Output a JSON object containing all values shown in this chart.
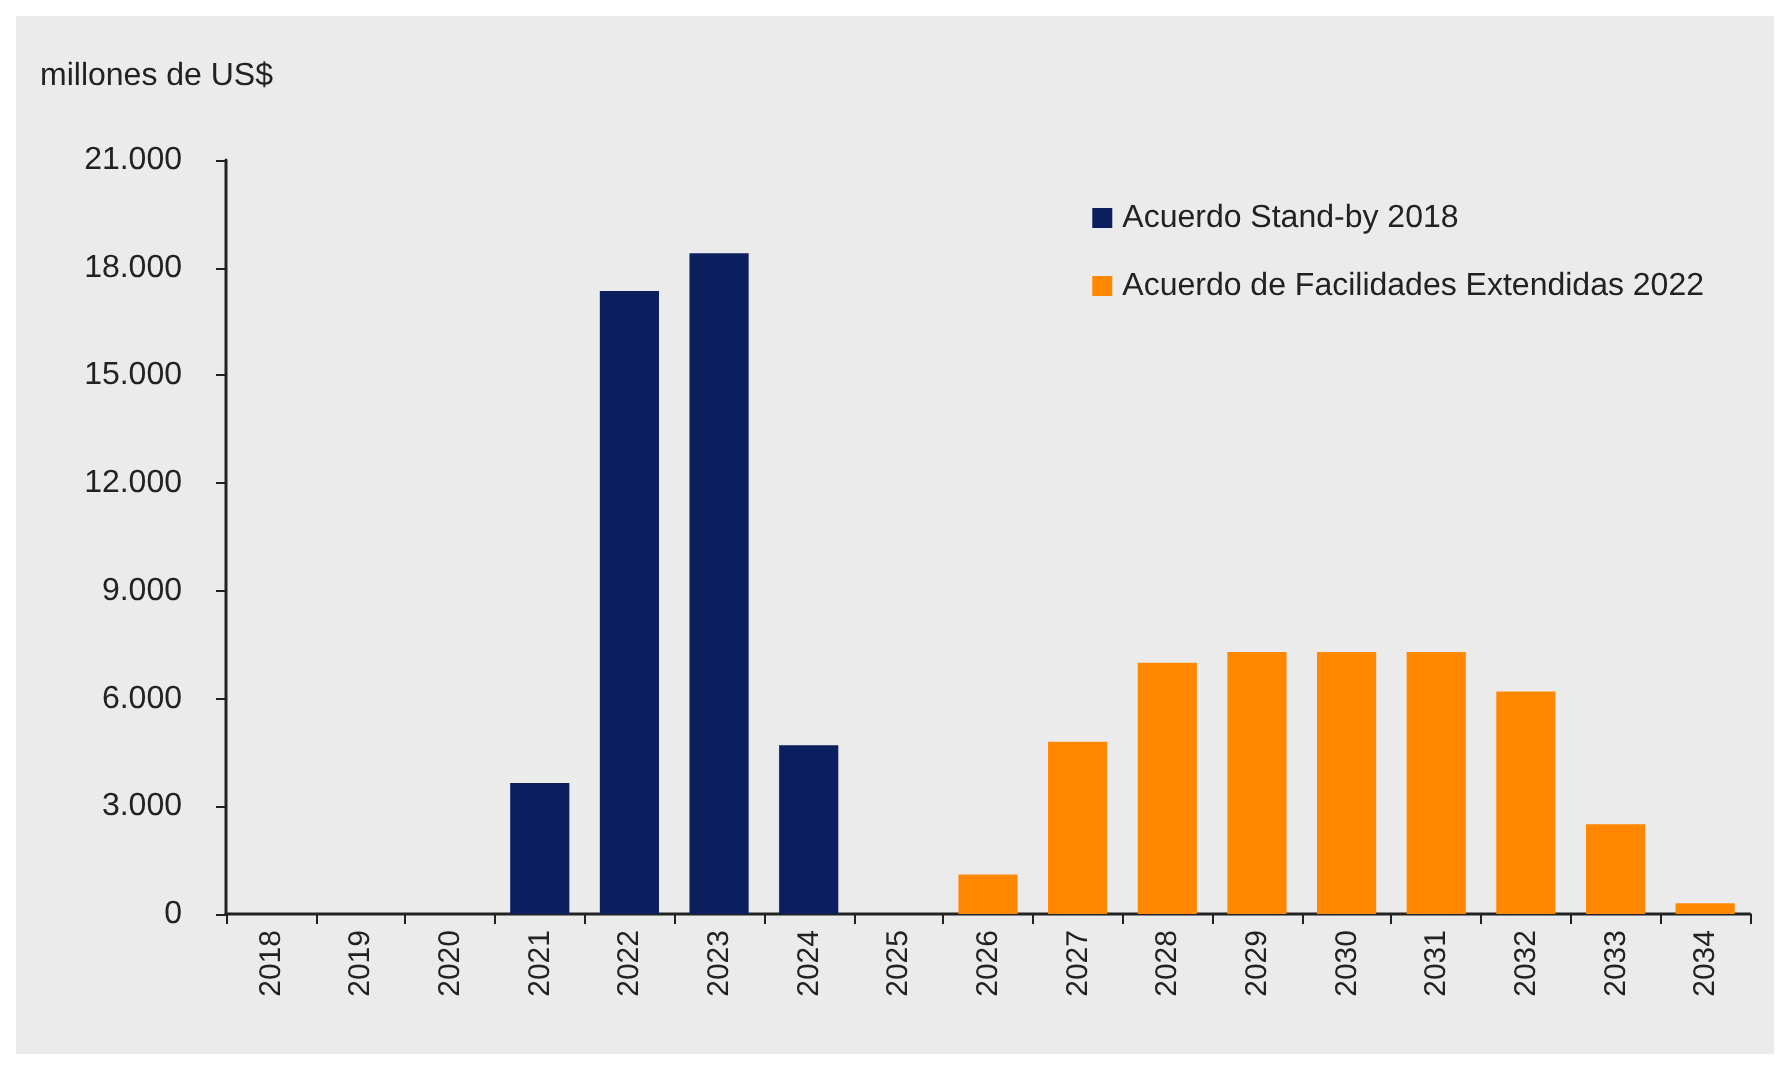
{
  "chart_data": {
    "type": "bar",
    "ylabel": "millones de US$",
    "categories": [
      "2018",
      "2019",
      "2020",
      "2021",
      "2022",
      "2023",
      "2024",
      "2025",
      "2026",
      "2027",
      "2028",
      "2029",
      "2030",
      "2031",
      "2032",
      "2033",
      "2034"
    ],
    "series": [
      {
        "name": "Acuerdo Stand-by 2018",
        "color": "#0b1f5e",
        "values": [
          null,
          null,
          null,
          3650,
          17350,
          18400,
          4700,
          null,
          null,
          null,
          null,
          null,
          null,
          null,
          null,
          null,
          null
        ]
      },
      {
        "name": "Acuerdo de Facilidades Extendidas 2022",
        "color": "#ff8800",
        "values": [
          null,
          null,
          null,
          null,
          null,
          null,
          null,
          null,
          1100,
          4800,
          7000,
          7300,
          7300,
          7300,
          6200,
          2500,
          300
        ]
      }
    ],
    "ylim": [
      0,
      21000
    ],
    "yticks": [
      {
        "value": 0,
        "label": "0"
      },
      {
        "value": 3000,
        "label": "3.000"
      },
      {
        "value": 6000,
        "label": "6.000"
      },
      {
        "value": 9000,
        "label": "9.000"
      },
      {
        "value": 12000,
        "label": "12.000"
      },
      {
        "value": 15000,
        "label": "15.000"
      },
      {
        "value": 18000,
        "label": "18.000"
      },
      {
        "value": 21000,
        "label": "21.000"
      }
    ],
    "grid": false,
    "legend": "top right"
  }
}
